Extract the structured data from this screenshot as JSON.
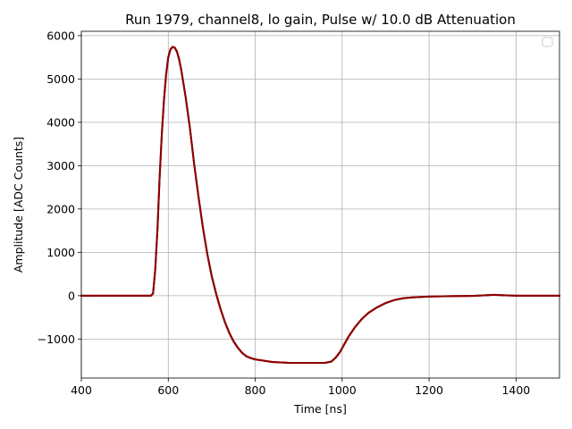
{
  "chart_data": {
    "type": "scatter",
    "title": "Run 1979, channel8, lo gain, Pulse w/ 10.0 dB Attenuation",
    "xlabel": "Time [ns]",
    "ylabel": "Amplitude [ADC Counts]",
    "xlim": [
      400,
      1500
    ],
    "ylim": [
      -1900,
      6100
    ],
    "xticks": [
      400,
      600,
      800,
      1000,
      1200,
      1400
    ],
    "yticks": [
      -1000,
      0,
      1000,
      2000,
      3000,
      4000,
      5000,
      6000
    ],
    "ytick_labels": [
      "−1000",
      "0",
      "1000",
      "2000",
      "3000",
      "4000",
      "5000",
      "6000"
    ],
    "grid": true,
    "legend": "top-right (empty)",
    "series": [
      {
        "color": "#8b0000",
        "x": [
          400,
          450,
          500,
          550,
          560,
          565,
          570,
          575,
          580,
          585,
          590,
          595,
          600,
          605,
          610,
          615,
          620,
          625,
          630,
          640,
          650,
          660,
          670,
          680,
          690,
          700,
          710,
          720,
          730,
          740,
          750,
          760,
          770,
          780,
          790,
          800,
          820,
          840,
          860,
          880,
          900,
          920,
          940,
          960,
          975,
          985,
          995,
          1005,
          1015,
          1030,
          1045,
          1060,
          1080,
          1100,
          1120,
          1140,
          1160,
          1180,
          1200,
          1250,
          1300,
          1330,
          1350,
          1370,
          1400,
          1450,
          1500
        ],
        "y": [
          0,
          0,
          0,
          0,
          0,
          50,
          600,
          1500,
          2700,
          3700,
          4500,
          5100,
          5500,
          5680,
          5740,
          5720,
          5630,
          5450,
          5200,
          4580,
          3850,
          3000,
          2250,
          1550,
          950,
          450,
          50,
          -300,
          -600,
          -850,
          -1050,
          -1200,
          -1320,
          -1400,
          -1440,
          -1470,
          -1500,
          -1530,
          -1540,
          -1550,
          -1550,
          -1550,
          -1550,
          -1550,
          -1520,
          -1430,
          -1300,
          -1120,
          -940,
          -720,
          -540,
          -400,
          -270,
          -170,
          -100,
          -60,
          -40,
          -30,
          -20,
          -10,
          -5,
          10,
          20,
          10,
          0,
          0,
          0
        ]
      }
    ]
  }
}
